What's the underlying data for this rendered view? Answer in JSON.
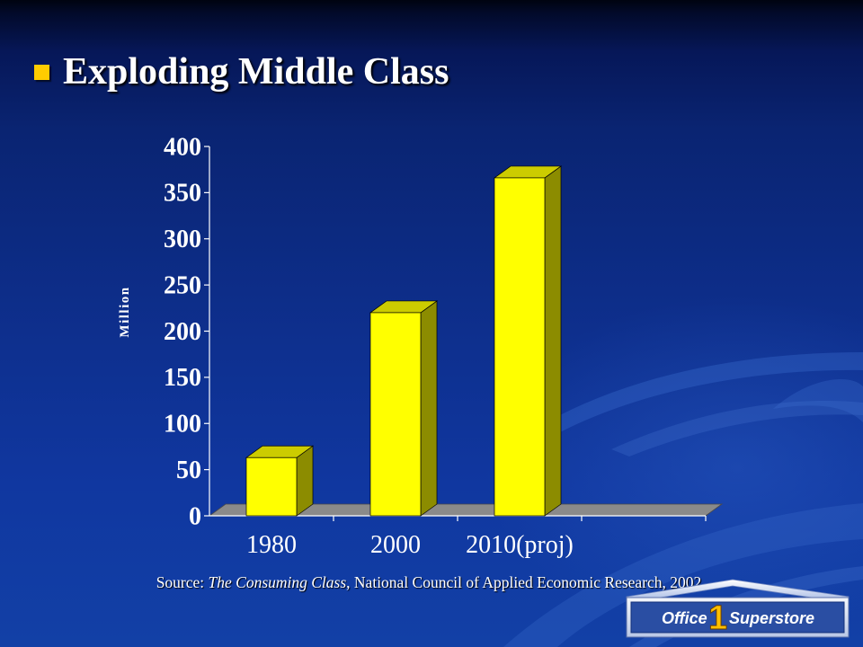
{
  "slide": {
    "title": "Exploding Middle Class",
    "colors": {
      "bullet": "#ffcc00",
      "title": "#ffffff"
    }
  },
  "chart_data": {
    "type": "bar",
    "three_d": true,
    "categories": [
      "1980",
      "2000",
      "2010(proj)"
    ],
    "values": [
      63,
      220,
      366
    ],
    "ylabel": "Million",
    "ylim": [
      0,
      400
    ],
    "yticks": [
      0,
      50,
      100,
      150,
      200,
      250,
      300,
      350,
      400
    ],
    "grid": false,
    "legend": "none",
    "colors": {
      "bar_front": "#ffff00",
      "bar_top": "#cccc00",
      "bar_side": "#8c8c00",
      "floor": "#8a8a8a",
      "axis": "#ffffff"
    }
  },
  "source": {
    "label": "Source: ",
    "publication": "The Consuming Class",
    "details": ", National Council of Applied Economic Research, 2002"
  },
  "logo": {
    "word_left": "Office",
    "numeral": "1",
    "word_right": "Superstore",
    "colors": {
      "panel": "#2a4ea3",
      "numeral": "#ffc000",
      "text": "#ffffff"
    }
  }
}
